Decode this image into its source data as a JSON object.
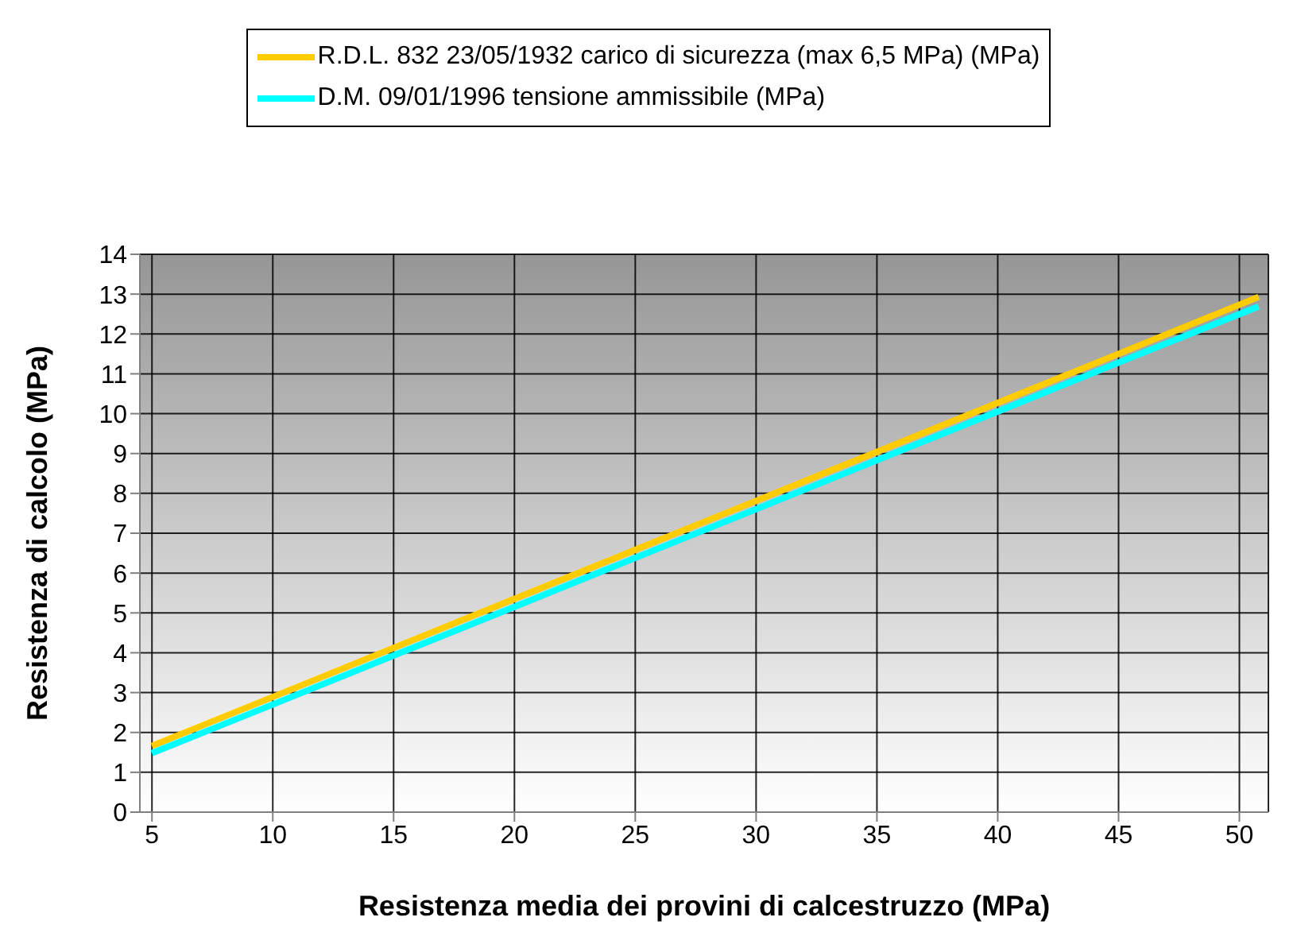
{
  "chart_data": {
    "type": "line",
    "xlabel": "Resistenza media dei provini di calcestruzzo (MPa)",
    "ylabel": "Resistenza di calcolo (MPa)",
    "x": [
      5,
      10,
      15,
      20,
      25,
      30,
      35,
      40,
      45,
      50.8
    ],
    "series": [
      {
        "name": "R.D.L. 832 23/05/1932 carico di sicurezza (max 6,5 MPa) (MPa)",
        "color": "#ffcc00",
        "values": [
          1.66,
          2.89,
          4.12,
          5.35,
          6.58,
          7.81,
          9.04,
          10.27,
          11.5,
          12.93
        ]
      },
      {
        "name": "D.M. 09/01/1996 tensione ammissibile (MPa)",
        "color": "#00ffff",
        "values": [
          1.48,
          2.7,
          3.93,
          5.15,
          6.38,
          7.6,
          8.83,
          10.05,
          11.28,
          12.69
        ]
      }
    ],
    "xlim": [
      4.5,
      51.2
    ],
    "xticks": [
      5,
      10,
      15,
      20,
      25,
      30,
      35,
      40,
      45,
      50
    ],
    "ylim": [
      0,
      14
    ],
    "yticks": [
      0,
      1,
      2,
      3,
      4,
      5,
      6,
      7,
      8,
      9,
      10,
      11,
      12,
      13,
      14
    ],
    "grid": true,
    "legend": "top",
    "marker": "none",
    "line_style": "solid"
  }
}
